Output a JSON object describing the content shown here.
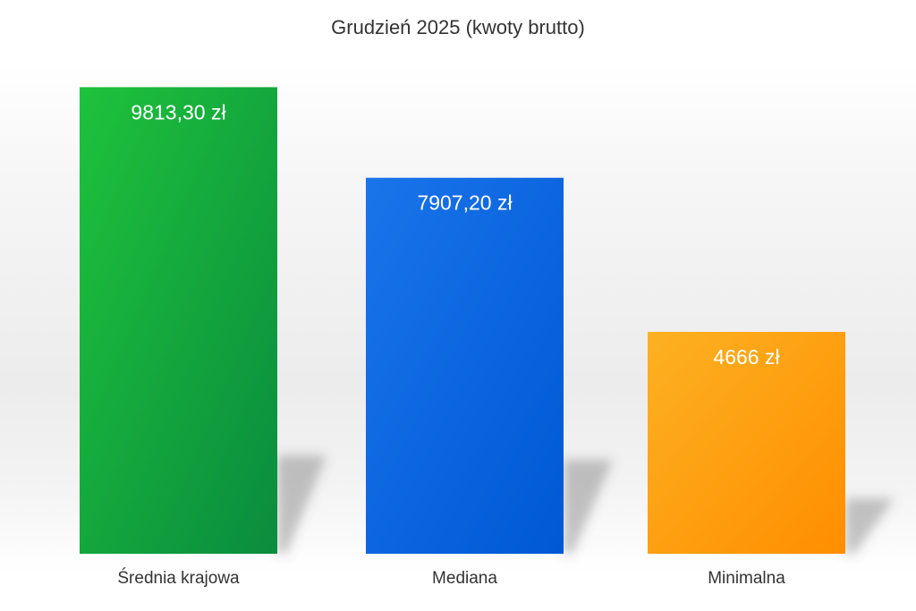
{
  "chart_data": {
    "type": "bar",
    "title": "Grudzień 2025 (kwoty brutto)",
    "xlabel": "",
    "ylabel": "",
    "categories": [
      "Średnia krajowa",
      "Mediana",
      "Minimalna"
    ],
    "values": [
      9813.3,
      7907.2,
      4666
    ],
    "value_labels": [
      "9813,30 zł",
      "7907,20 zł",
      "4666 zł"
    ],
    "ylim": [
      0,
      10950
    ],
    "grid": false,
    "legend": "none",
    "colors": [
      {
        "top": "#1ec23c",
        "bottom": "#0a8c3e"
      },
      {
        "top": "#1a74ea",
        "bottom": "#0058d4"
      },
      {
        "top": "#fcb122",
        "bottom": "#ff8e00"
      }
    ]
  }
}
